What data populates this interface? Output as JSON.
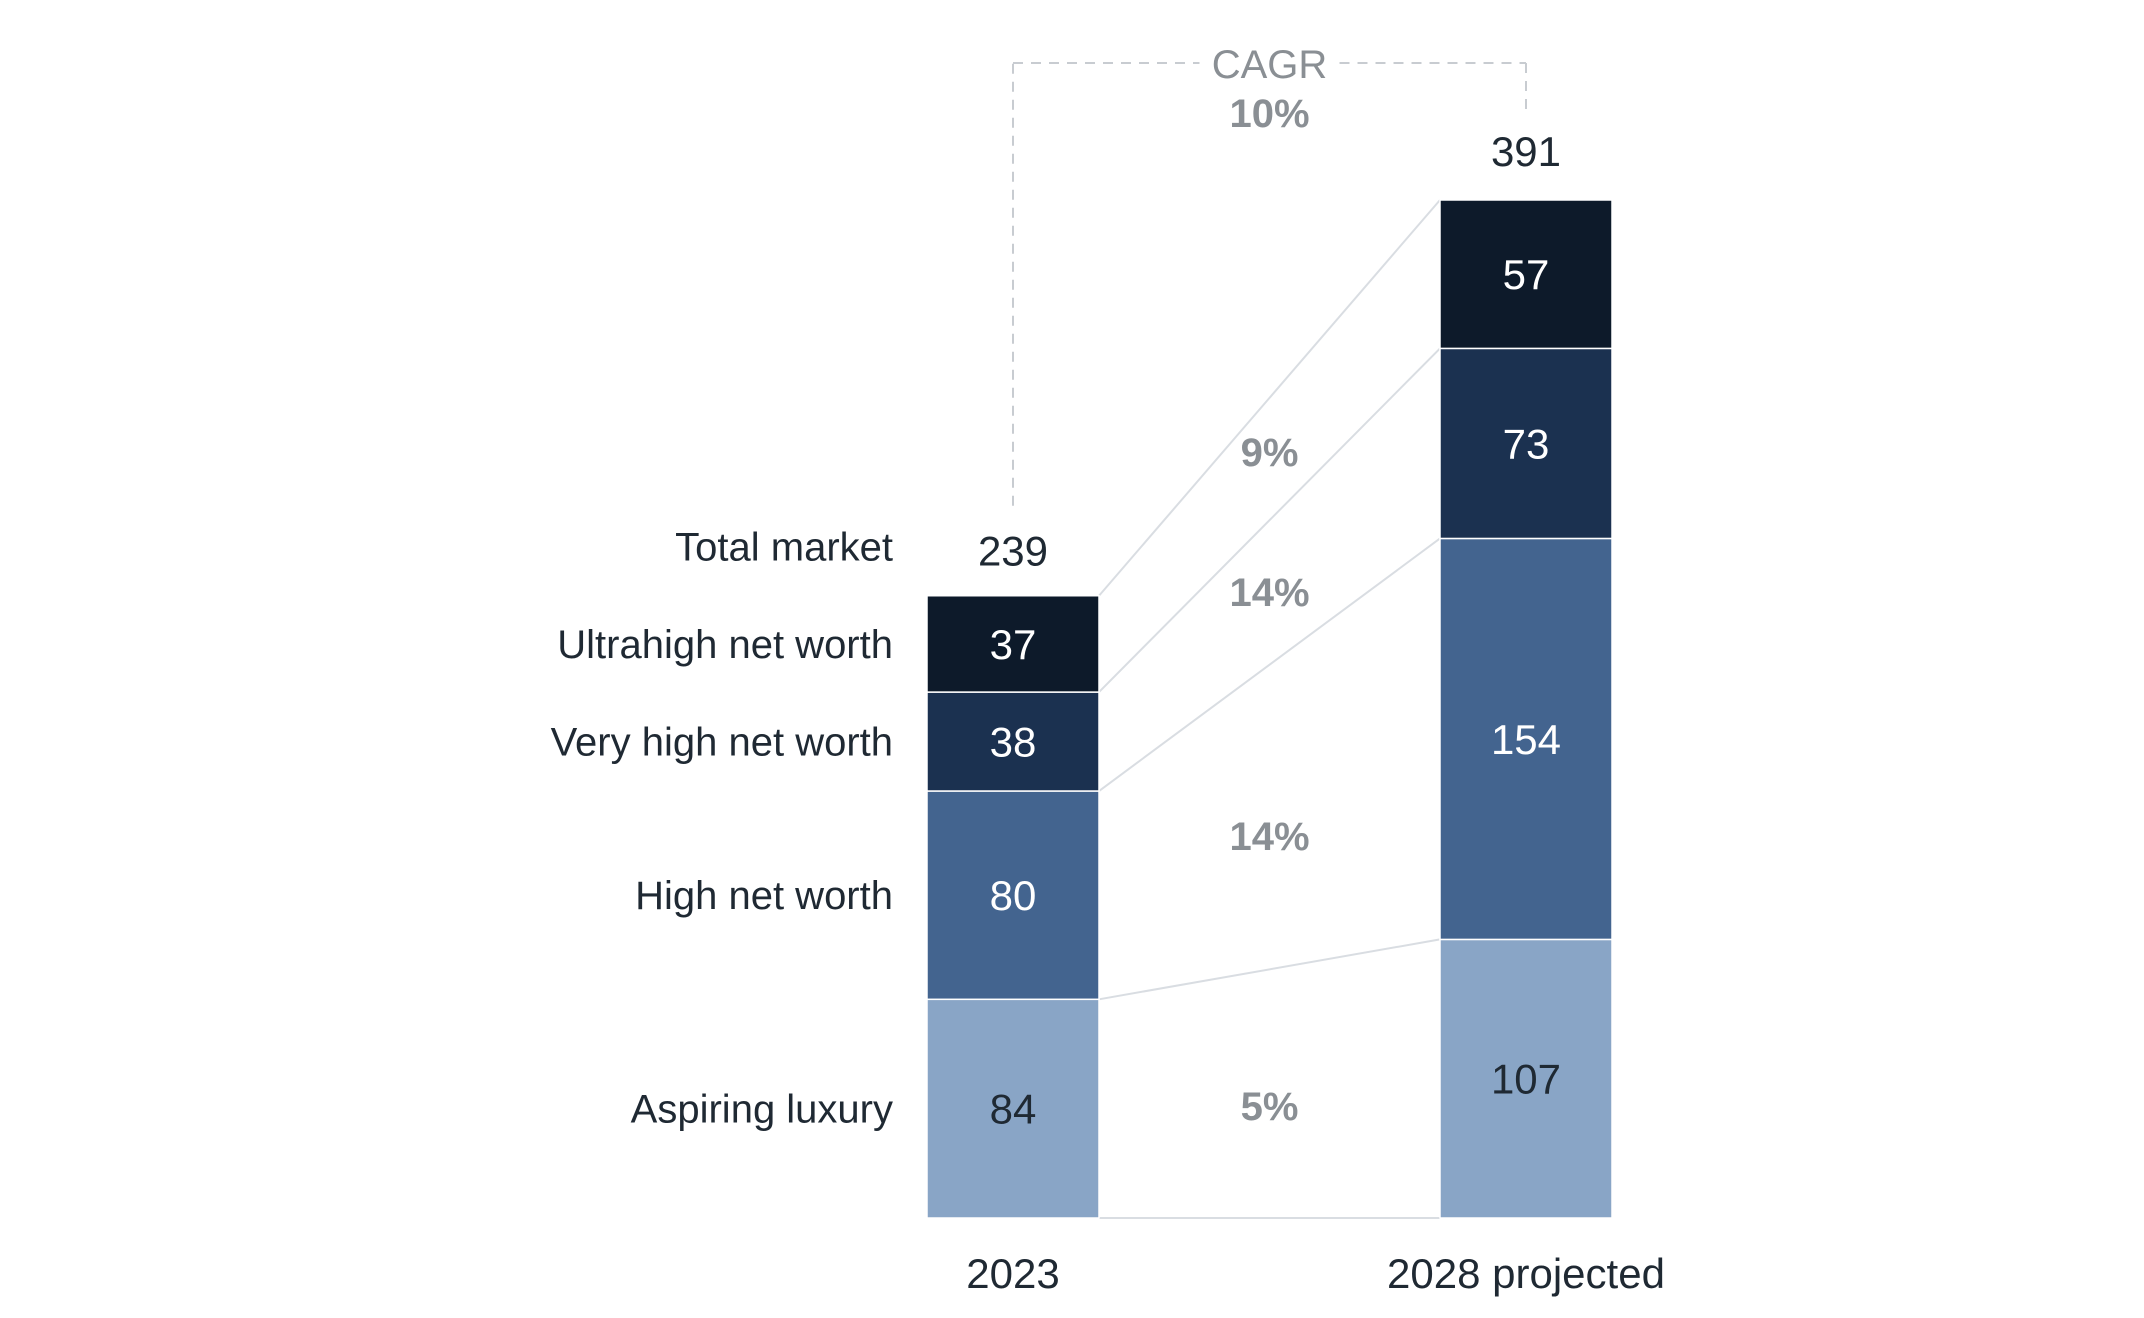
{
  "chart_data": {
    "type": "bar",
    "stacked": true,
    "categories": [
      "2023",
      "2028 projected"
    ],
    "total_label": "Total market",
    "totals": [
      239,
      391
    ],
    "series": [
      {
        "name": "Aspiring luxury",
        "values": [
          84,
          107
        ],
        "cagr": "5%",
        "color": "#89a5c6",
        "text_color": "#1f2933"
      },
      {
        "name": "High net worth",
        "values": [
          80,
          154
        ],
        "cagr": "14%",
        "color": "#43648f",
        "text_color": "#ffffff"
      },
      {
        "name": "Very high net worth",
        "values": [
          38,
          73
        ],
        "cagr": "14%",
        "color": "#1b3150",
        "text_color": "#ffffff"
      },
      {
        "name": "Ultrahigh net worth",
        "values": [
          37,
          57
        ],
        "cagr": "9%",
        "color": "#0d1a2a",
        "text_color": "#ffffff"
      }
    ],
    "cagr_total": {
      "title": "CAGR",
      "value": "10%"
    },
    "ylim": [
      0,
      391
    ]
  }
}
